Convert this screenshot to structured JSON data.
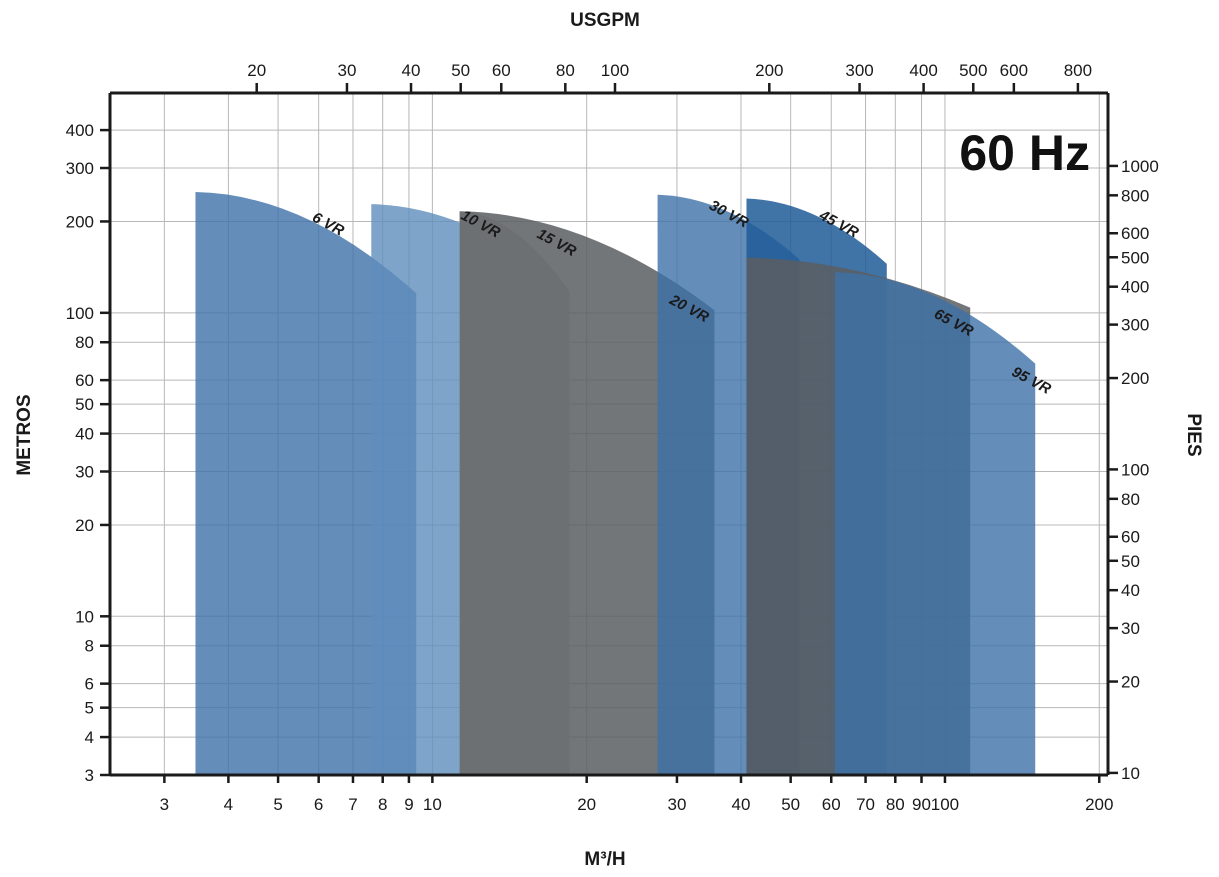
{
  "chart_data": {
    "type": "area",
    "annotation": "60 Hz",
    "x_bottom": {
      "label": "M³/H",
      "scale": "log",
      "range": [
        2.35,
        208
      ],
      "ticks": [
        3,
        4,
        5,
        6,
        7,
        8,
        9,
        10,
        20,
        30,
        40,
        50,
        60,
        70,
        80,
        90,
        100,
        200
      ],
      "tick_labels": [
        "3",
        "4",
        "5",
        "6",
        "7",
        "8",
        "9",
        "10",
        "20",
        "30",
        "40",
        "50",
        "60",
        "70",
        "80",
        "90",
        "100",
        "200"
      ]
    },
    "x_top": {
      "label": "USGPM",
      "scale": "log",
      "ticks": [
        20,
        30,
        40,
        50,
        60,
        80,
        100,
        200,
        300,
        400,
        500,
        600,
        800
      ],
      "tick_labels": [
        "20",
        "30",
        "40",
        "50",
        "60",
        "80",
        "100",
        "200",
        "300",
        "400",
        "500",
        "600",
        "800"
      ]
    },
    "y_left": {
      "label": "METROS",
      "scale": "log",
      "range": [
        3,
        530
      ],
      "ticks": [
        3,
        4,
        5,
        6,
        8,
        10,
        20,
        30,
        40,
        50,
        60,
        80,
        100,
        200,
        300,
        400
      ],
      "tick_labels": [
        "3",
        "4",
        "5",
        "6",
        "8",
        "10",
        "20",
        "30",
        "40",
        "50",
        "60",
        "80",
        "100",
        "200",
        "300",
        "400"
      ]
    },
    "y_right": {
      "label": "PIES",
      "scale": "log",
      "ticks": [
        10,
        20,
        30,
        40,
        50,
        60,
        80,
        100,
        200,
        300,
        400,
        500,
        600,
        800,
        1000
      ],
      "tick_labels": [
        "10",
        "20",
        "30",
        "40",
        "50",
        "60",
        "80",
        "100",
        "200",
        "300",
        "400",
        "500",
        "600",
        "800",
        "1000"
      ]
    },
    "grid": true,
    "series": [
      {
        "name": "6 VR",
        "color": "#3d72a8",
        "opacity": 0.8,
        "x_min": 3.45,
        "x_max": 9.3,
        "head_start": 250,
        "head_end": 116
      },
      {
        "name": "10 VR",
        "color": "#5f8dbd",
        "opacity": 0.8,
        "x_min": 7.6,
        "x_max": 18.5,
        "head_start": 228,
        "head_end": 118
      },
      {
        "name": "15 VR",
        "color": "#d3d3d3",
        "opacity": 1.0,
        "x_min": 11.3,
        "x_max": 18.5,
        "head_start": 216,
        "head_end": 118
      },
      {
        "name": "20 VR",
        "color": "#5a5e62",
        "opacity": 0.85,
        "x_min": 11.3,
        "x_max": 35.5,
        "head_start": 216,
        "head_end": 102
      },
      {
        "name": "30 VR",
        "color": "#3d72a8",
        "opacity": 0.8,
        "x_min": 27.5,
        "x_max": 52,
        "head_start": 245,
        "head_end": 150
      },
      {
        "name": "45 VR",
        "color": "#1e5a96",
        "opacity": 0.85,
        "x_min": 41,
        "x_max": 77,
        "head_start": 238,
        "head_end": 145
      },
      {
        "name": "65 VR",
        "color": "#5a5e62",
        "opacity": 0.85,
        "x_min": 41,
        "x_max": 112,
        "head_start": 152,
        "head_end": 104
      },
      {
        "name": "95 VR",
        "color": "#3d72a8",
        "opacity": 0.8,
        "x_min": 61,
        "x_max": 150,
        "head_start": 136,
        "head_end": 68
      }
    ],
    "labels": {
      "6 VR": {
        "x": 6.2,
        "y": 190
      },
      "10 VR": {
        "x": 12.3,
        "y": 190
      },
      "15 VR": {
        "x": 17.3,
        "y": 165
      },
      "20 VR": {
        "x": 31.4,
        "y": 100
      },
      "30 VR": {
        "x": 37.5,
        "y": 205
      },
      "45 VR": {
        "x": 61.5,
        "y": 190
      },
      "65 VR": {
        "x": 103,
        "y": 90
      },
      "95 VR": {
        "x": 146,
        "y": 58
      }
    }
  }
}
